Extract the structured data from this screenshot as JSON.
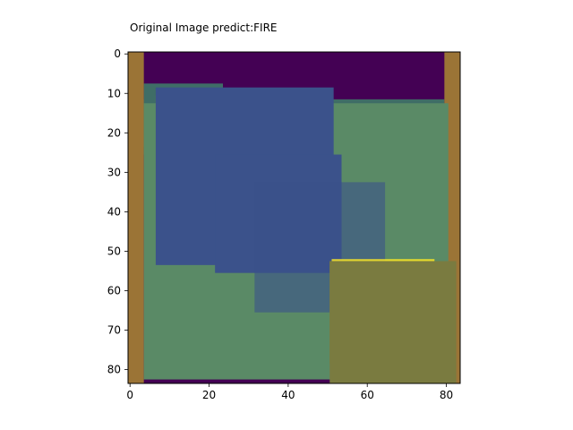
{
  "figure": {
    "title": "Original Image predict:FIRE"
  },
  "axes": {
    "x_ticks": [
      0,
      20,
      40,
      60,
      80
    ],
    "y_ticks": [
      0,
      10,
      20,
      30,
      40,
      50,
      60,
      70,
      80
    ],
    "x_range": [
      -0.5,
      83.5
    ],
    "y_range": [
      -0.5,
      83.5
    ]
  },
  "colors": {
    "background": "#440154",
    "wall": "#9b7436",
    "band_teal": "#3f6d66",
    "band_olive": "#7a7b40",
    "band_orange": "#9b7436",
    "brick_blue": "#31688e",
    "paddle_green": "#5a8a66",
    "heat_cell": "#3b528b",
    "heat_bright": "#fde725"
  }
}
